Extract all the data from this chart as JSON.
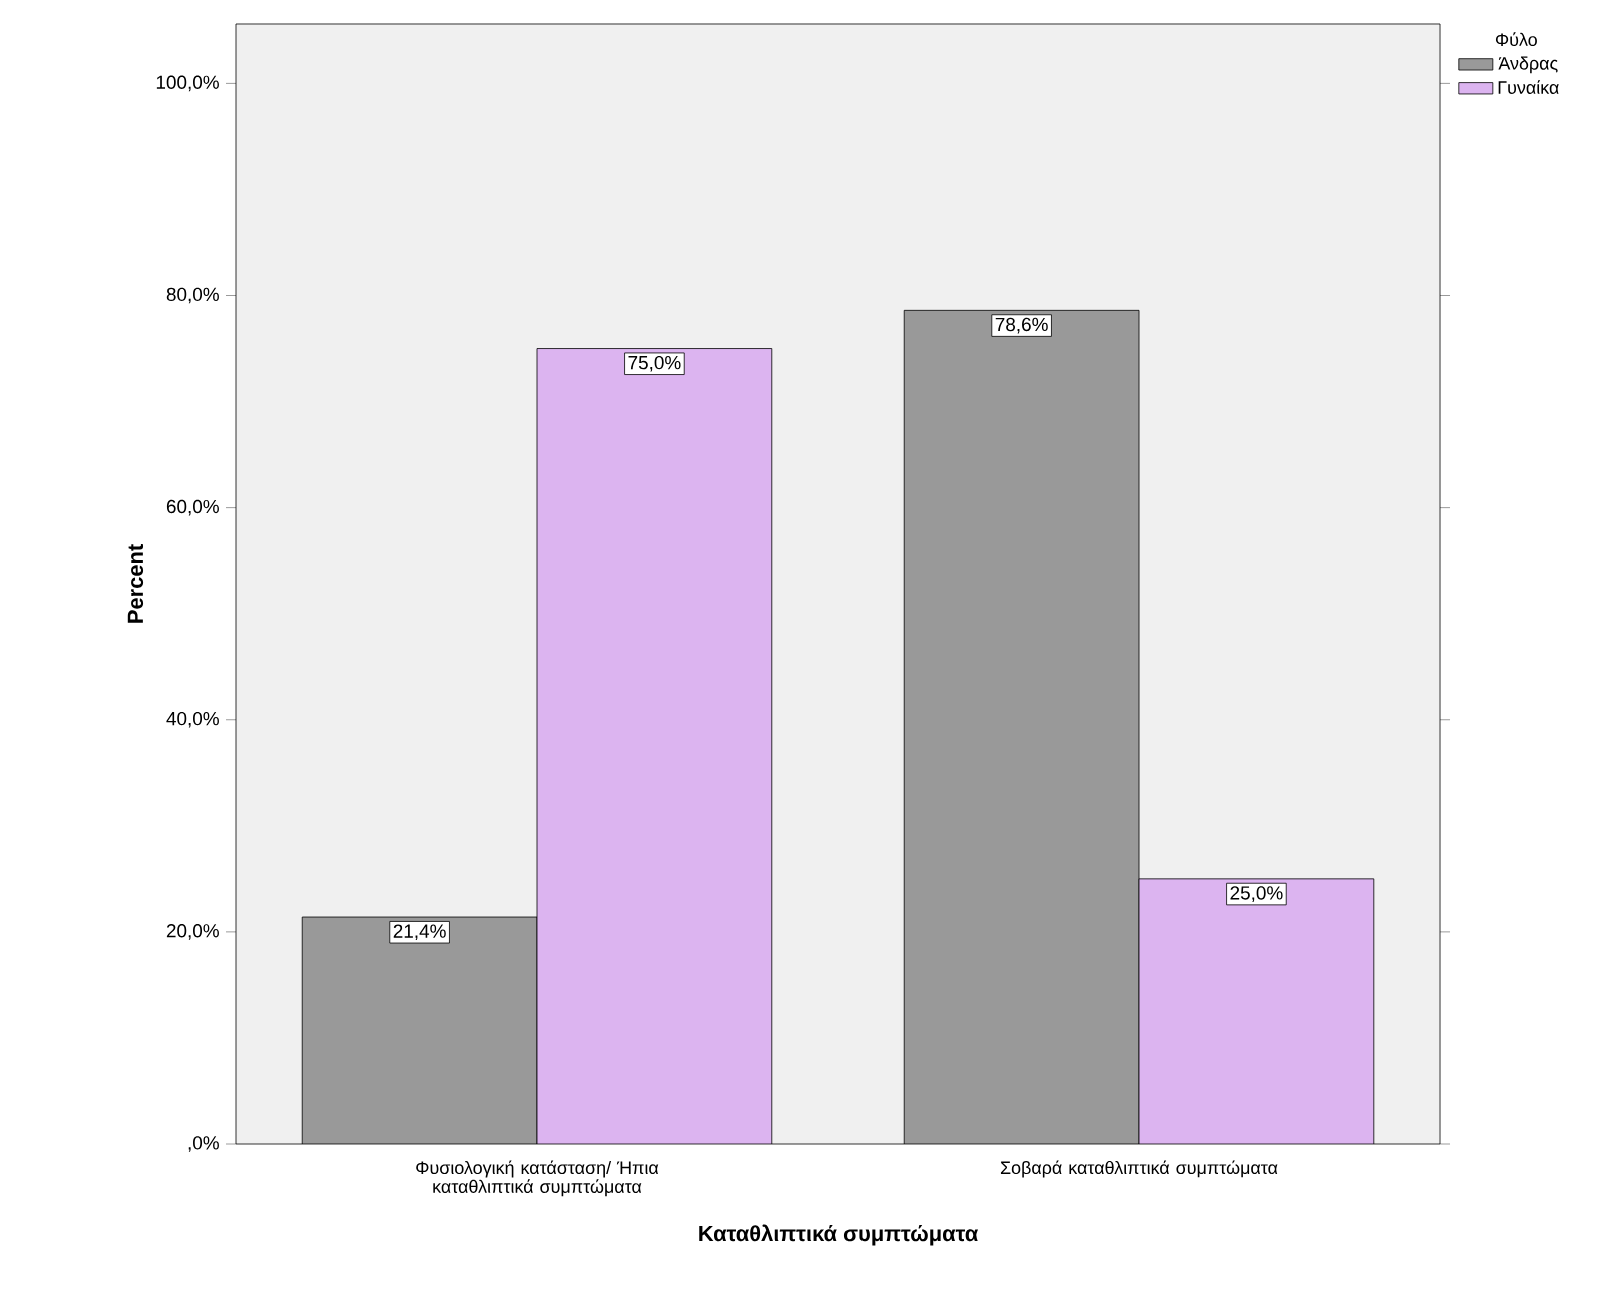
{
  "chart_data": {
    "type": "bar",
    "xlabel": "Καταθλιπτικά συμπτώματα",
    "ylabel": "Percent",
    "legend_title": "Φύλο",
    "legend": "top right",
    "categories": [
      "Φυσιολογική κατάσταση/ Ήπια καταθλιπτικά συμπτώματα",
      "Σοβαρά καταθλιπτικά συμπτώματα"
    ],
    "series": [
      {
        "name": "Άνδρας",
        "color": "#999999",
        "values": [
          21.4,
          78.6
        ],
        "value_labels": [
          "21,4%",
          "78,6%"
        ]
      },
      {
        "name": "Γυναίκα",
        "color": "#dcb4f0",
        "values": [
          75.0,
          25.0
        ],
        "value_labels": [
          "75,0%",
          "25,0%"
        ]
      }
    ],
    "ylim": [
      0,
      105.6
    ],
    "yticks": [
      {
        "value": 0,
        "label": ",0%"
      },
      {
        "value": 20,
        "label": "20,0%"
      },
      {
        "value": 40,
        "label": "40,0%"
      },
      {
        "value": 60,
        "label": "60,0%"
      },
      {
        "value": 80,
        "label": "80,0%"
      },
      {
        "value": 100,
        "label": "100,0%"
      }
    ]
  }
}
